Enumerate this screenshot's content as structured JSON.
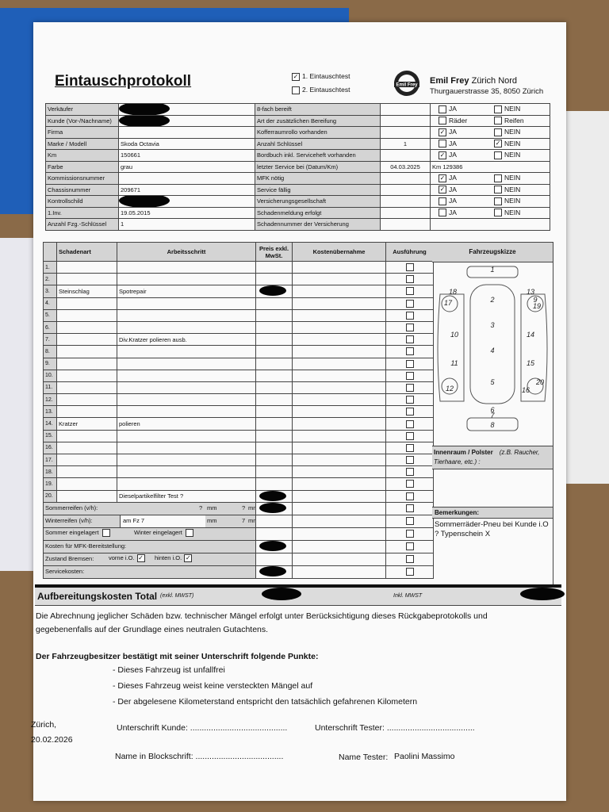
{
  "header": {
    "title": "Eintauschprotokoll",
    "tests": [
      {
        "label": "1. Eintauschtest",
        "checked": true
      },
      {
        "label": "2. Eintauschtest",
        "checked": false
      }
    ],
    "logo": "Emil Frey",
    "company_name": "Emil Frey",
    "branch": "Zürich Nord",
    "address": "Thurgauerstrasse 35, 8050 Zürich"
  },
  "vehicle_table": {
    "rows": [
      {
        "label": "Verkäufer",
        "redacted": true,
        "item": "8-fach bereift",
        "options": [
          {
            "label": "JA",
            "checked": false
          },
          {
            "label": "NEIN",
            "checked": false
          }
        ]
      },
      {
        "label": "Kunde (Vor-/Nachname)",
        "redacted": true,
        "item": "Art der zusätzlichen Bereifung",
        "options": [
          {
            "label": "Räder",
            "checked": false
          },
          {
            "label": "Reifen",
            "checked": false
          }
        ]
      },
      {
        "label": "Firma",
        "item": "Kofferraumrollo vorhanden",
        "options": [
          {
            "label": "JA",
            "checked": true
          },
          {
            "label": "NEIN",
            "checked": false
          }
        ]
      },
      {
        "label": "Marke / Modell",
        "value": "Skoda Octavia",
        "item": "Anzahl Schlüssel",
        "item_value": "1",
        "options": [
          {
            "label": "JA",
            "checked": false
          },
          {
            "label": "NEIN",
            "checked": true
          }
        ]
      },
      {
        "label": "Km",
        "value": "150661",
        "item": "Bordbuch inkl. Serviceheft vorhanden",
        "options": [
          {
            "label": "JA",
            "checked": true
          },
          {
            "label": "NEIN",
            "checked": false
          }
        ]
      },
      {
        "label": "Farbe",
        "value": "grau",
        "item": "letzter Service bei (Datum/Km)",
        "item_value": "04.03.2025",
        "note": "Km 129386"
      },
      {
        "label": "Kommissionsnummer",
        "item": "MFK nötig",
        "options": [
          {
            "label": "JA",
            "checked": true
          },
          {
            "label": "NEIN",
            "checked": false
          }
        ]
      },
      {
        "label": "Chassisnummer",
        "value": "209671",
        "item": "Service fällig",
        "options": [
          {
            "label": "JA",
            "checked": true
          },
          {
            "label": "NEIN",
            "checked": false
          }
        ]
      },
      {
        "label": "Kontrollschild",
        "redacted": true,
        "item": "Versicherungsgesellschaft",
        "options": [
          {
            "label": "JA",
            "checked": false
          },
          {
            "label": "NEIN",
            "checked": false
          }
        ]
      },
      {
        "label": "1.Inv.",
        "value": "19.05.2015",
        "item": "Schadenmeldung erfolgt",
        "options": [
          {
            "label": "JA",
            "checked": false
          },
          {
            "label": "NEIN",
            "checked": false
          }
        ]
      },
      {
        "label": "Anzahl Fzg.-Schlüssel",
        "value": "1",
        "item": "Schadennummer der Versicherung"
      }
    ]
  },
  "damage_table": {
    "headers": [
      "Schadenart",
      "Arbeitsschritt",
      "Preis exkl. MwSt.",
      "Kostenübernahme",
      "Ausführung"
    ],
    "rows": [
      {
        "no": "1."
      },
      {
        "no": "2."
      },
      {
        "no": "3.",
        "damage": "Steinschlag",
        "step": "Spotrepair",
        "price_redacted": true
      },
      {
        "no": "4."
      },
      {
        "no": "5."
      },
      {
        "no": "6."
      },
      {
        "no": "7.",
        "step": "Div.Kratzer polieren ausb."
      },
      {
        "no": "8."
      },
      {
        "no": "9."
      },
      {
        "no": "10."
      },
      {
        "no": "11."
      },
      {
        "no": "12."
      },
      {
        "no": "13."
      },
      {
        "no": "14.",
        "damage": "Kratzer",
        "step": "polieren"
      },
      {
        "no": "15."
      },
      {
        "no": "16."
      },
      {
        "no": "17."
      },
      {
        "no": "18."
      },
      {
        "no": "19."
      },
      {
        "no": "20.",
        "step": "Dieselpartikelfilter Test ?",
        "price_redacted": true
      }
    ],
    "summer_tires": {
      "label": "Sommerreifen (v/h):",
      "front": "?",
      "front_unit": "mm",
      "rear": "?",
      "rear_unit": "mm",
      "price_redacted": true
    },
    "winter_tires": {
      "label": "Winterreifen (v/h):",
      "note": "am Fz 7",
      "front_unit": "mm",
      "rear": "7",
      "rear_unit": "mm"
    },
    "storage": [
      {
        "label": "Sommer eingelagert",
        "checked": false
      },
      {
        "label": "Winter eingelagert",
        "checked": false
      }
    ],
    "mfk": {
      "label": "Kosten für MFK-Bereitstellung:",
      "price_redacted": true
    },
    "brakes": {
      "label": "Zustand Bremsen:",
      "options": [
        {
          "label": "vorne i.O.",
          "checked": true
        },
        {
          "label": "hinten i.O.",
          "checked": true
        }
      ]
    },
    "service": {
      "label": "Servicekosten:",
      "price_redacted": true
    }
  },
  "sketch": {
    "title": "Fahrzeugskizze",
    "marks": [
      "1",
      "2",
      "3",
      "4",
      "5",
      "6",
      "7",
      "8",
      "9",
      "10",
      "11",
      "12",
      "13",
      "14",
      "15",
      "16",
      "17",
      "18",
      "19",
      "20"
    ]
  },
  "interior": {
    "label": "Innenraum / Polster",
    "hint": "(z.B. Raucher, Tierhaare, etc.) :"
  },
  "remarks": {
    "label": "Bemerkungen:",
    "text": "Sommerräder-Pneu bei Kunde i.O ? Typenschein X"
  },
  "total": {
    "label": "Aufbereitungskosten Total",
    "note": "(exkl. MWST)",
    "incl": "Inkl. MWST"
  },
  "footer": {
    "disclaimer": "Die Abrechnung jeglicher Schäden bzw. technischer Mängel erfolgt unter Berücksichtigung dieses Rückgabeprotokolls und gegebenenfalls auf der Grundlage eines neutralen Gutachtens.",
    "confirm_title": "Der Fahrzeugbesitzer bestätigt mit seiner Unterschrift folgende Punkte:",
    "points": [
      "- Dieses Fahrzeug ist unfallfrei",
      "- Dieses Fahrzeug weist keine versteckten Mängel auf",
      "- Der abgelesene Kilometerstand entspricht den tatsächlich gefahrenen Kilometern"
    ],
    "place": "Zürich,",
    "date": "20.02.2026",
    "sign_customer": "Unterschrift Kunde: ..........................................",
    "sign_tester": "Unterschrift Tester: ......................................",
    "block_name": "Name in Blockschrift: ......................................",
    "tester_label": "Name Tester:",
    "tester_name": "Paolini Massimo"
  }
}
